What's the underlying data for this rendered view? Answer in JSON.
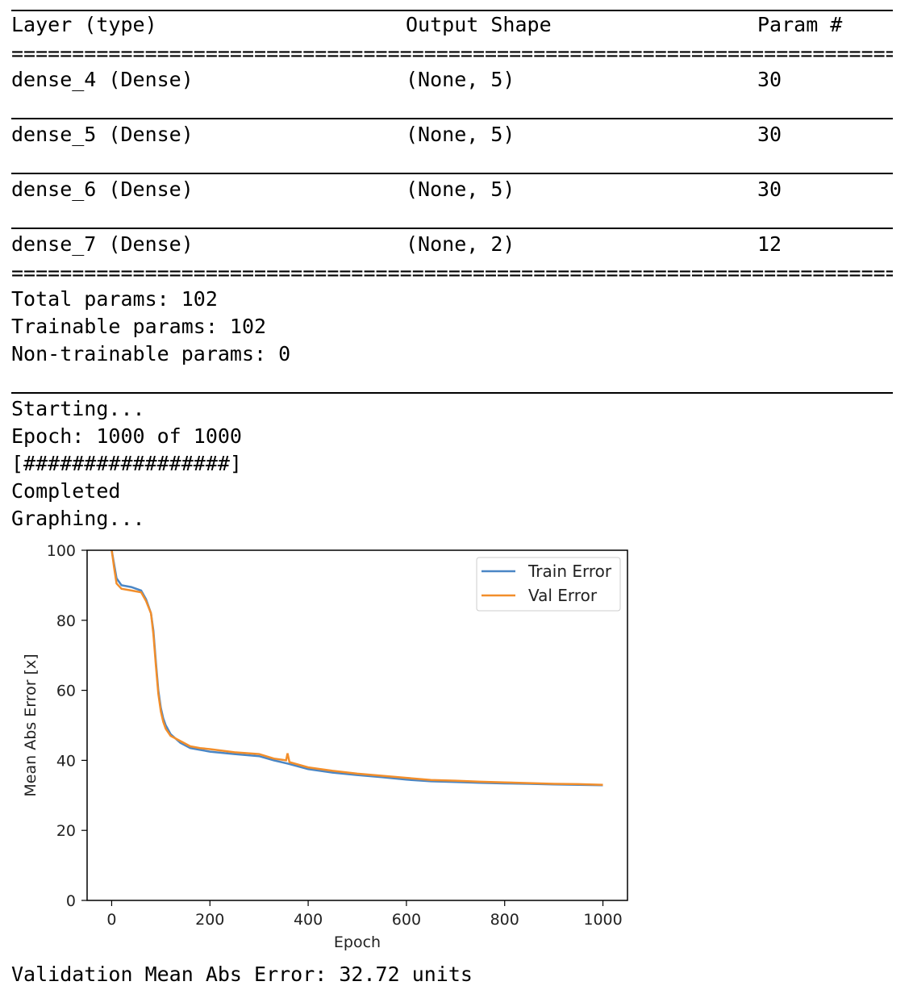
{
  "summary": {
    "headers": {
      "layer": "Layer (type)",
      "output_shape": "Output Shape",
      "params": "Param #"
    },
    "rows": [
      {
        "layer": "dense_4 (Dense)",
        "output_shape": "(None, 5)",
        "params": "30"
      },
      {
        "layer": "dense_5 (Dense)",
        "output_shape": "(None, 5)",
        "params": "30"
      },
      {
        "layer": "dense_6 (Dense)",
        "output_shape": "(None, 5)",
        "params": "30"
      },
      {
        "layer": "dense_7 (Dense)",
        "output_shape": "(None, 2)",
        "params": "12"
      }
    ],
    "total_params": "Total params: 102",
    "trainable_params": "Trainable params: 102",
    "non_trainable_params": "Non-trainable params: 0"
  },
  "log": {
    "starting": "Starting...",
    "epoch": "Epoch: 1000 of 1000",
    "progress": "[#################]",
    "completed": "Completed",
    "graphing": "Graphing..."
  },
  "result": "Validation Mean Abs Error: 32.72 units",
  "colors": {
    "train": "#4a86c5",
    "val": "#f28e2b"
  },
  "chart_data": {
    "type": "line",
    "xlabel": "Epoch",
    "ylabel": "Mean Abs Error [x]",
    "xlim": [
      -50,
      1050
    ],
    "ylim": [
      0,
      100
    ],
    "xticks": [
      0,
      200,
      400,
      600,
      800,
      1000
    ],
    "yticks": [
      0,
      20,
      40,
      60,
      80,
      100
    ],
    "legend_position": "top-right",
    "series": [
      {
        "name": "Train Error",
        "x": [
          0,
          5,
          10,
          20,
          40,
          60,
          70,
          80,
          85,
          90,
          95,
          100,
          105,
          110,
          120,
          140,
          160,
          180,
          200,
          250,
          300,
          330,
          360,
          400,
          450,
          500,
          550,
          600,
          650,
          700,
          750,
          800,
          850,
          900,
          950,
          1000
        ],
        "y": [
          100,
          96,
          92,
          90,
          89.5,
          88.5,
          86,
          82,
          77,
          68,
          60,
          55,
          52,
          50,
          47.5,
          45,
          43.5,
          43,
          42.5,
          41.8,
          41.2,
          40,
          39,
          37.5,
          36.5,
          35.8,
          35.2,
          34.5,
          34,
          33.8,
          33.6,
          33.4,
          33.3,
          33.1,
          33.0,
          32.9
        ]
      },
      {
        "name": "Val Error",
        "x": [
          0,
          5,
          10,
          20,
          40,
          60,
          70,
          80,
          85,
          90,
          95,
          100,
          105,
          110,
          120,
          140,
          160,
          180,
          200,
          250,
          300,
          330,
          355,
          358,
          362,
          400,
          450,
          500,
          550,
          600,
          650,
          700,
          750,
          800,
          850,
          900,
          950,
          1000
        ],
        "y": [
          100,
          95,
          90.5,
          89,
          88.5,
          88,
          85.5,
          82,
          76,
          67,
          59,
          54,
          51,
          49,
          47,
          45.5,
          44,
          43.5,
          43.2,
          42.3,
          41.8,
          40.5,
          40,
          42,
          39.5,
          38,
          37,
          36.2,
          35.6,
          35,
          34.4,
          34.2,
          33.9,
          33.7,
          33.5,
          33.3,
          33.2,
          33.0
        ]
      }
    ]
  }
}
